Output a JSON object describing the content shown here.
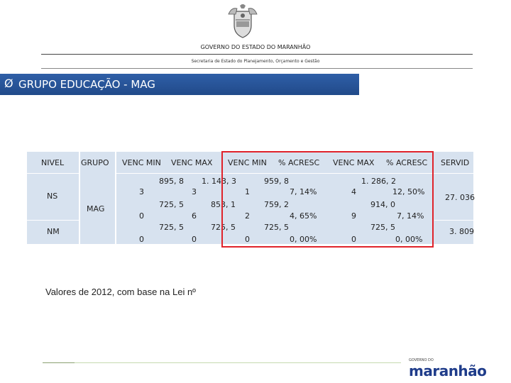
{
  "header": {
    "government": "GOVERNO DO ESTADO DO MARANHÃO",
    "secretaria": "Secretaria de Estado do Planejamento, Orçamento e Gestão"
  },
  "banner": {
    "arrow": "Ø",
    "title": "GRUPO EDUCAÇÃO - MAG"
  },
  "table": {
    "headers": {
      "nivel": "NIVEL",
      "grupo": "GRUPO",
      "venc_min": "VENC MIN",
      "venc_max": "VENC MAX",
      "venc_min_new": "VENC MIN",
      "acresc_min": "% ACRESC",
      "venc_max_new": "VENC MAX",
      "acresc_max": "% ACRESC",
      "servid": "SERVID"
    },
    "grupo_value": "MAG",
    "rows": [
      {
        "nivel": "NS",
        "venc_min_a": "895, 8",
        "venc_min_b": "3",
        "venc_max_a": "1. 143, 3",
        "venc_max_b": "3",
        "venc_min_new_b": "1",
        "acresc_min_a": "959, 8",
        "acresc_min_b": "7, 14%",
        "venc_max_new_b": "4",
        "acresc_max_a": "1. 286, 2",
        "acresc_max_b": "12, 50%",
        "servid": "27. 036"
      },
      {
        "nivel": "",
        "venc_min_a": "725, 5",
        "venc_min_b": "0",
        "venc_max_a": "853, 1",
        "venc_max_b": "6",
        "venc_min_new_b": "2",
        "acresc_min_a": "759, 2",
        "acresc_min_b": "4, 65%",
        "venc_max_new_b": "9",
        "acresc_max_a": "914, 0",
        "acresc_max_b": "7, 14%",
        "servid": ""
      },
      {
        "nivel": "NM",
        "venc_min_a": "725, 5",
        "venc_min_b": "0",
        "venc_max_a": "725, 5",
        "venc_max_b": "0",
        "venc_min_new_b": "0",
        "acresc_min_a": "725, 5",
        "acresc_min_b": "0, 00%",
        "venc_max_new_b": "0",
        "acresc_max_a": "725, 5",
        "acresc_max_b": "0, 00%",
        "servid": "3. 809"
      }
    ]
  },
  "note": "Valores de 2012, com base na Lei nº",
  "logo": {
    "top": "GOVERNO DO",
    "name": "maranhão"
  },
  "colors": {
    "banner": "#2f5fa7",
    "highlight": "#e0232b",
    "table_bg": "#d7e2ef"
  }
}
